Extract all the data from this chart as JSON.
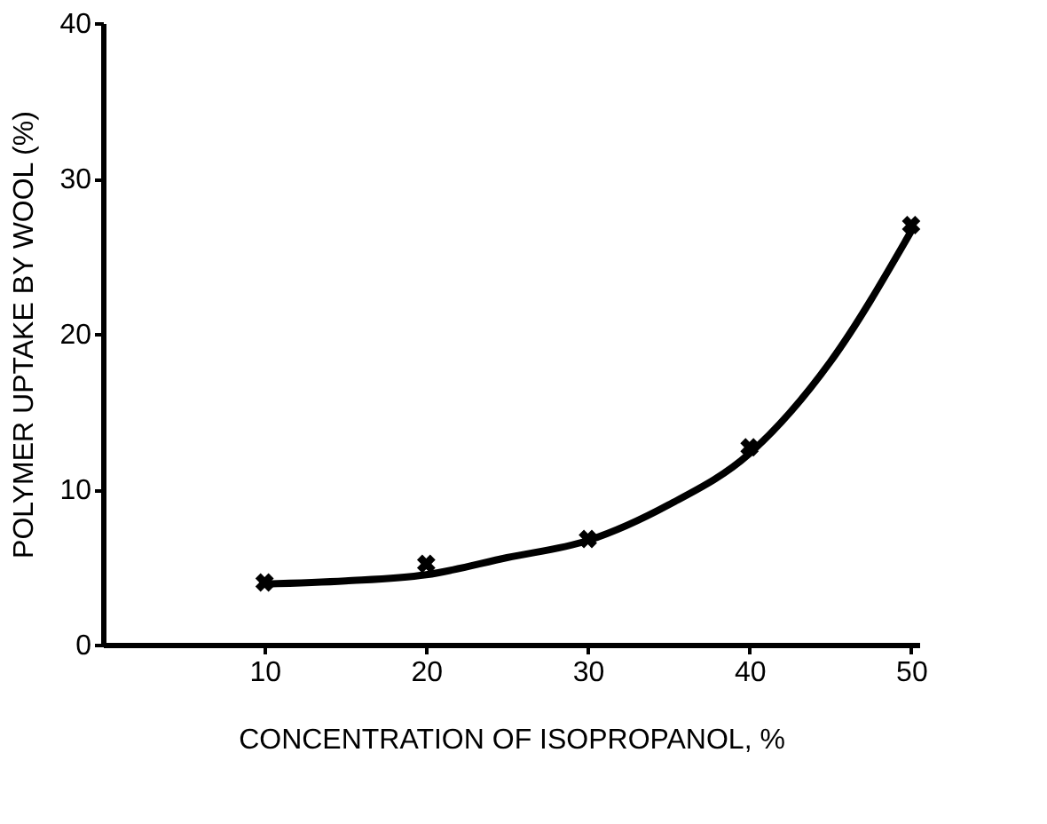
{
  "chart_data": {
    "type": "scatter",
    "xlabel": "CONCENTRATION OF ISOPROPANOL, %",
    "ylabel": "POLYMER UPTAKE BY WOOL (%)",
    "xlim": [
      0,
      50.5
    ],
    "xticks": [
      10,
      20,
      30,
      40,
      50
    ],
    "ylim": [
      0,
      40
    ],
    "yticks": [
      0,
      10,
      20,
      30,
      40
    ],
    "grid": false,
    "series": [
      {
        "marker": "cross",
        "color": "#000000",
        "x": [
          10,
          20,
          30,
          40,
          50
        ],
        "values": [
          4.0,
          5.2,
          6.8,
          12.7,
          27.0
        ]
      },
      {
        "type": "line",
        "line_style": "solid",
        "color": "#000000",
        "x": [
          10,
          15,
          20,
          25,
          30,
          35,
          40,
          45,
          50
        ],
        "values": [
          3.9,
          4.1,
          4.5,
          5.6,
          6.7,
          9.0,
          12.3,
          18.2,
          26.6
        ]
      }
    ]
  }
}
